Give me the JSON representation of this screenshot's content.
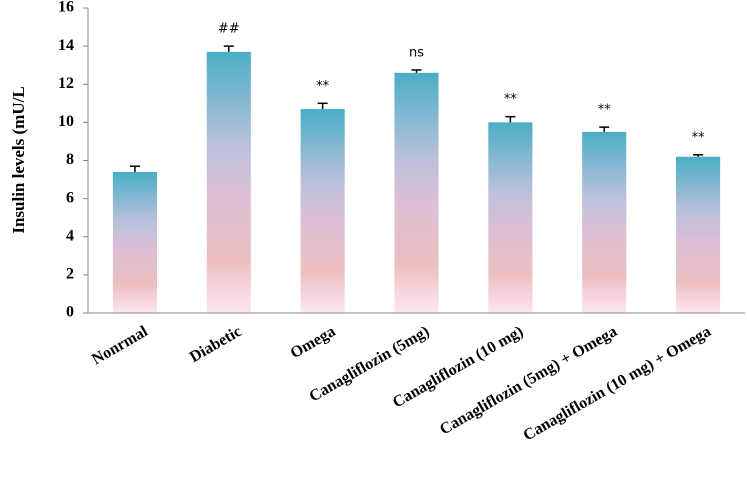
{
  "chart_data": {
    "type": "bar",
    "y_label": "Insulin levels (mU/L",
    "categories": [
      "Nonrmal",
      "Diabetic",
      "Omega",
      "Canagliflozin (5mg)",
      "Canagliflozin (10 mg)",
      "Canagliflozin (5mg) + Omega",
      "Canagliflozin (10 mg) + Omega"
    ],
    "values": [
      7.4,
      13.7,
      10.7,
      12.6,
      10.0,
      9.5,
      8.2
    ],
    "errors": [
      0.3,
      0.3,
      0.3,
      0.15,
      0.3,
      0.25,
      0.1
    ],
    "annotations": [
      null,
      "##",
      "**",
      "ns",
      "**",
      "**",
      "**"
    ],
    "ylim": [
      0,
      16
    ],
    "yticks": [
      0,
      2,
      4,
      6,
      8,
      10,
      12,
      14,
      16
    ]
  }
}
